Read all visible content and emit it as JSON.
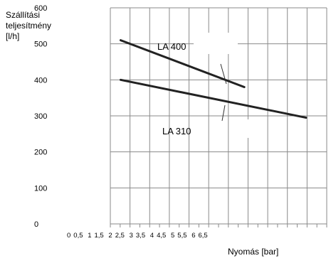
{
  "chart_data": {
    "type": "line",
    "ylabel_lines": [
      "Szállítási",
      "teljesítmény",
      "[l/h]"
    ],
    "xlabel": "Nyomás [bar]",
    "x_tick_labels": [
      "0",
      "0,5",
      "1",
      "1,5",
      "2",
      "2,5",
      "3",
      "3,5",
      "4",
      "4,5",
      "5",
      "5,5",
      "6",
      "6,5"
    ],
    "y_tick_labels": [
      "0",
      "100",
      "200",
      "300",
      "400",
      "500",
      "600"
    ],
    "xlim": [
      0,
      10.5
    ],
    "ylim": [
      0,
      600
    ],
    "grid": true,
    "series": [
      {
        "name": "LA 400",
        "color": "#222222",
        "x": [
          0.5,
          6.5
        ],
        "y": [
          510,
          380
        ]
      },
      {
        "name": "LA 310",
        "color": "#222222",
        "x": [
          0.5,
          9.5
        ],
        "y": [
          400,
          295
        ]
      }
    ]
  }
}
